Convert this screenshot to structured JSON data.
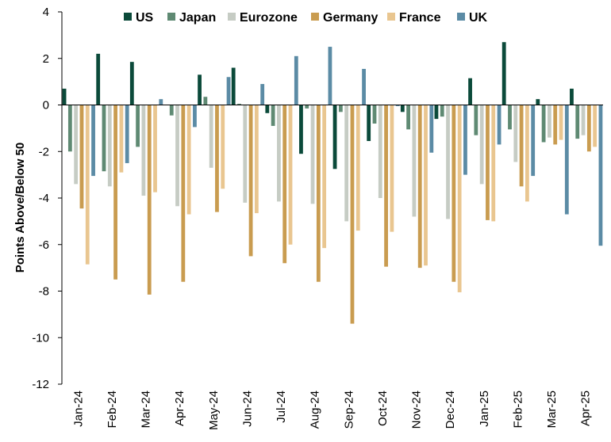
{
  "chart_data": {
    "type": "bar",
    "ylabel": "Points Above/Below 50",
    "xlabel": "",
    "ylim": [
      -12,
      4
    ],
    "yticks": [
      4,
      2,
      0,
      -2,
      -4,
      -6,
      -8,
      -10,
      -12
    ],
    "grid": false,
    "legend_position": "top",
    "categories": [
      "Jan-24",
      "Feb-24",
      "Mar-24",
      "Apr-24",
      "May-24",
      "Jun-24",
      "Jul-24",
      "Aug-24",
      "Sep-24",
      "Oct-24",
      "Nov-24",
      "Dec-24",
      "Jan-25",
      "Feb-25",
      "Mar-25",
      "Apr-25"
    ],
    "series": [
      {
        "name": "US",
        "color": "#0b4a3a",
        "values": [
          0.7,
          2.2,
          1.85,
          0.0,
          1.3,
          1.6,
          -0.35,
          -2.1,
          -2.75,
          -1.55,
          -0.3,
          -0.6,
          1.15,
          2.7,
          0.25,
          0.7
        ]
      },
      {
        "name": "Japan",
        "color": "#5f8a73",
        "values": [
          -2.0,
          -2.85,
          -1.8,
          -0.45,
          0.35,
          0.05,
          -0.9,
          -0.15,
          -0.3,
          -0.8,
          -1.05,
          -0.5,
          -1.3,
          -1.05,
          -1.6,
          -1.45
        ]
      },
      {
        "name": "Eurozone",
        "color": "#c6ccc4",
        "values": [
          -3.4,
          -3.5,
          -3.9,
          -4.35,
          -2.7,
          -4.2,
          -4.15,
          -4.25,
          -5.0,
          -4.0,
          -4.8,
          -4.9,
          -3.4,
          -2.45,
          -1.4,
          -1.3
        ]
      },
      {
        "name": "Germany",
        "color": "#c99c50",
        "values": [
          -4.45,
          -7.5,
          -8.15,
          -7.6,
          -4.6,
          -6.5,
          -6.8,
          -7.6,
          -9.4,
          -6.95,
          -7.0,
          -7.6,
          -4.95,
          -3.5,
          -1.7,
          -2.0
        ]
      },
      {
        "name": "France",
        "color": "#e9c690",
        "values": [
          -6.85,
          -2.9,
          -3.75,
          -4.7,
          -3.6,
          -4.65,
          -6.0,
          -6.15,
          -5.4,
          -5.45,
          -6.9,
          -8.05,
          -5.0,
          -4.15,
          -1.5,
          -1.8
        ]
      },
      {
        "name": "UK",
        "color": "#5b8ba5",
        "values": [
          -3.05,
          -2.5,
          0.25,
          -0.95,
          1.2,
          0.9,
          2.1,
          2.5,
          1.55,
          -0.05,
          -2.05,
          -3.0,
          -1.7,
          -3.05,
          -4.7,
          -6.05
        ]
      }
    ]
  }
}
